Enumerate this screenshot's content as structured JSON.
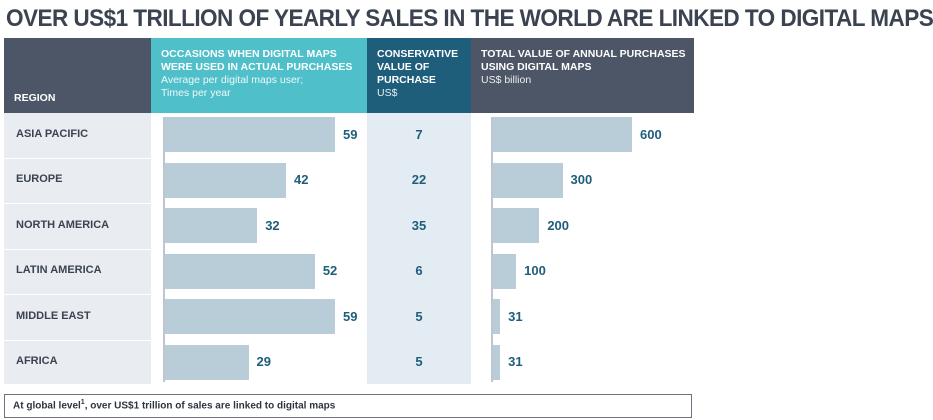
{
  "title": "OVER US$1 TRILLION OF YEARLY SALES IN THE WORLD ARE LINKED TO DIGITAL MAPS",
  "headers": {
    "region": "REGION",
    "occasions_title": "OCCASIONS WHEN DIGITAL MAPS WERE USED IN ACTUAL PURCHASES",
    "occasions_sub1": "Average per digital maps user;",
    "occasions_sub2": "Times per year",
    "value_title": "CONSERVATIVE VALUE OF PURCHASE",
    "value_sub": "US$",
    "total_title": "TOTAL VALUE OF ANNUAL PURCHASES USING DIGITAL MAPS",
    "total_sub": "US$ billion"
  },
  "footer": {
    "prefix": "At global level",
    "sup": "1",
    "suffix": ", over US$1 trillion of sales are linked to digital maps"
  },
  "colors": {
    "header_dark": "#4d5666",
    "header_teal": "#4fc0c9",
    "header_blue": "#1f5e7a",
    "bar": "#b9cdd8",
    "value_text": "#1f5e7a"
  },
  "chart_data": {
    "type": "table",
    "categories": [
      "ASIA PACIFIC",
      "EUROPE",
      "NORTH AMERICA",
      "LATIN AMERICA",
      "MIDDLE EAST",
      "AFRICA"
    ],
    "series": [
      {
        "name": "OCCASIONS WHEN DIGITAL MAPS WERE USED IN ACTUAL PURCHASES",
        "values": [
          59,
          42,
          32,
          52,
          59,
          29
        ]
      },
      {
        "name": "CONSERVATIVE VALUE OF PURCHASE",
        "values": [
          7,
          22,
          35,
          6,
          5,
          5
        ]
      },
      {
        "name": "TOTAL VALUE OF ANNUAL PURCHASES USING DIGITAL MAPS",
        "values": [
          600,
          300,
          200,
          100,
          31,
          31
        ]
      }
    ],
    "occasions_max": 59,
    "total_max": 600
  }
}
